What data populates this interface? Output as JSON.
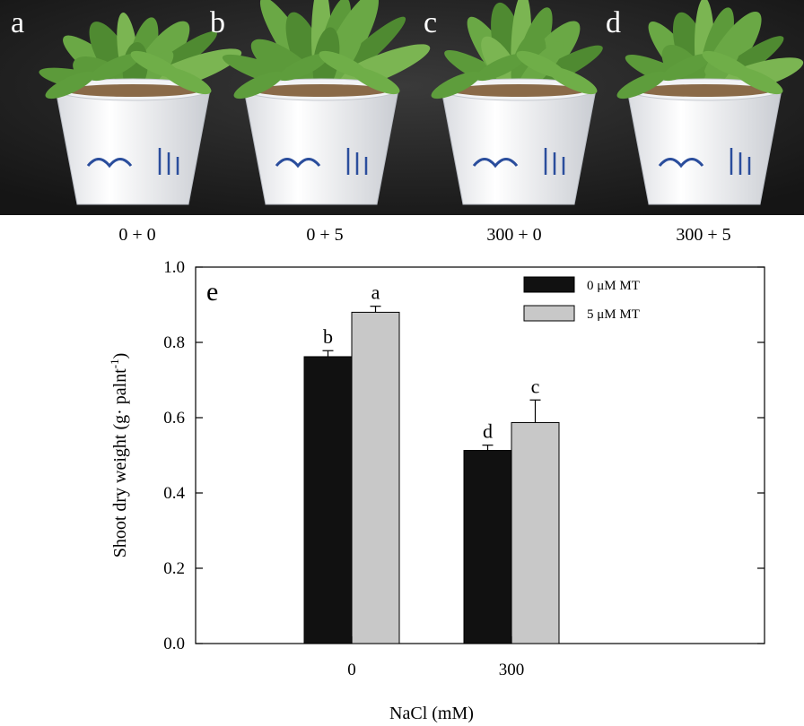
{
  "photos": [
    {
      "letter": "a",
      "treatment": "0 + 0"
    },
    {
      "letter": "b",
      "treatment": "0 + 5"
    },
    {
      "letter": "c",
      "treatment": "300 + 0"
    },
    {
      "letter": "d",
      "treatment": "300 + 5"
    }
  ],
  "chart_data": {
    "type": "bar",
    "panel_label": "e",
    "xlabel": "NaCl (mM)",
    "ylabel_main": "Shoot dry weight (g· palnt",
    "ylabel_sup": "-1",
    "ylabel_close": ")",
    "categories": [
      "0",
      "300"
    ],
    "ylim": [
      0.0,
      1.0
    ],
    "yticks": [
      "0.0",
      "0.2",
      "0.4",
      "0.6",
      "0.8",
      "1.0"
    ],
    "grid": false,
    "legend_position": "top-right",
    "series": [
      {
        "name": "0 μM MT",
        "color": "#111111",
        "values": [
          0.762,
          0.513
        ],
        "errors": [
          0.016,
          0.014
        ],
        "letters": [
          "b",
          "d"
        ]
      },
      {
        "name": "5 μM MT",
        "color": "#c8c8c8",
        "values": [
          0.88,
          0.587
        ],
        "errors": [
          0.016,
          0.06
        ],
        "letters": [
          "a",
          "c"
        ]
      }
    ]
  }
}
